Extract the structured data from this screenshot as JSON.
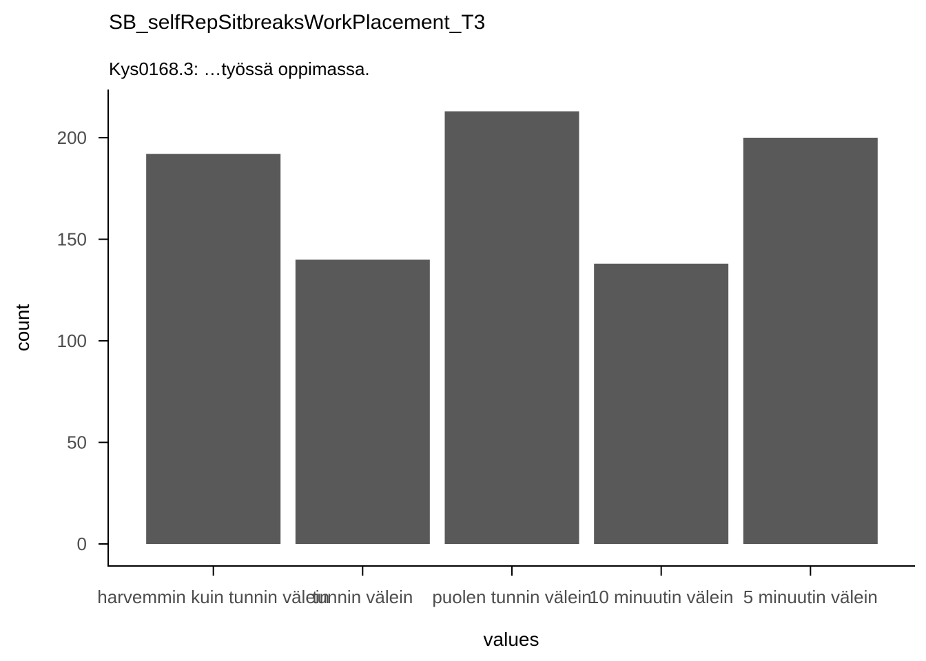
{
  "chart_data": {
    "type": "bar",
    "title": "SB_selfRepSitbreaksWorkPlacement_T3",
    "subtitle": "Kys0168.3: …työssä oppimassa.",
    "xlabel": "values",
    "ylabel": "count",
    "categories": [
      "harvemmin kuin tunnin välein",
      "tunnin välein",
      "puolen tunnin välein",
      "10 minuutin välein",
      "5 minuutin välein"
    ],
    "values": [
      192,
      140,
      213,
      138,
      200
    ],
    "yticks": [
      0,
      50,
      100,
      150,
      200
    ],
    "ylim": [
      0,
      222
    ],
    "grid": false,
    "bar_color": "#595959"
  }
}
